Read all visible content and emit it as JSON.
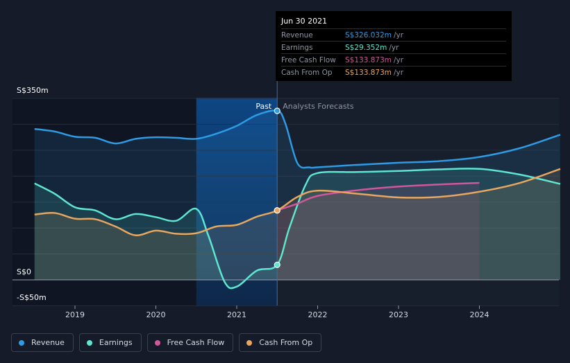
{
  "chart_data": {
    "type": "line",
    "currency_prefix": "S$",
    "ylabel_top": "S$350m",
    "ylabel_zero": "S$0",
    "ylabel_bottom": "-S$50m",
    "ylim": [
      -50,
      350
    ],
    "xlim": [
      2018.5,
      2025.0
    ],
    "x_ticks": [
      "2019",
      "2020",
      "2021",
      "2022",
      "2023",
      "2024"
    ],
    "x_tick_values": [
      2019,
      2020,
      2021,
      2022,
      2023,
      2024
    ],
    "past_label": "Past",
    "forecast_label": "Analysts Forecasts",
    "divider_x": 2021.5,
    "highlight_start_x": 2020.5,
    "series": [
      {
        "name": "Revenue",
        "color": "#2e9be5",
        "points": [
          [
            2018.5,
            291
          ],
          [
            2018.75,
            286
          ],
          [
            2019.0,
            276
          ],
          [
            2019.25,
            274
          ],
          [
            2019.5,
            263
          ],
          [
            2019.75,
            272
          ],
          [
            2020.0,
            275
          ],
          [
            2020.25,
            274
          ],
          [
            2020.5,
            272
          ],
          [
            2020.75,
            282
          ],
          [
            2021.0,
            297
          ],
          [
            2021.25,
            318
          ],
          [
            2021.5,
            326
          ],
          [
            2021.6,
            302
          ],
          [
            2021.75,
            225
          ],
          [
            2021.9,
            217
          ],
          [
            2022.0,
            217
          ],
          [
            2022.5,
            222
          ],
          [
            2023.0,
            226
          ],
          [
            2023.5,
            229
          ],
          [
            2024.0,
            237
          ],
          [
            2024.5,
            254
          ],
          [
            2025.0,
            280
          ]
        ]
      },
      {
        "name": "Earnings",
        "color": "#5ee6d1",
        "points": [
          [
            2018.5,
            186
          ],
          [
            2018.75,
            166
          ],
          [
            2019.0,
            140
          ],
          [
            2019.25,
            134
          ],
          [
            2019.5,
            117
          ],
          [
            2019.75,
            127
          ],
          [
            2020.0,
            121
          ],
          [
            2020.25,
            114
          ],
          [
            2020.5,
            137
          ],
          [
            2020.65,
            85
          ],
          [
            2020.85,
            -4
          ],
          [
            2021.0,
            -13
          ],
          [
            2021.25,
            18
          ],
          [
            2021.5,
            29
          ],
          [
            2021.65,
            100
          ],
          [
            2021.85,
            183
          ],
          [
            2022.0,
            206
          ],
          [
            2022.5,
            208
          ],
          [
            2023.0,
            210
          ],
          [
            2023.5,
            213
          ],
          [
            2024.0,
            214
          ],
          [
            2024.5,
            203
          ],
          [
            2025.0,
            185
          ]
        ]
      },
      {
        "name": "Free Cash Flow",
        "color": "#d1579a",
        "points": [
          [
            2021.5,
            134
          ],
          [
            2021.75,
            147
          ],
          [
            2022.0,
            162
          ],
          [
            2022.5,
            173
          ],
          [
            2023.0,
            180
          ],
          [
            2023.5,
            184
          ],
          [
            2024.0,
            187
          ]
        ]
      },
      {
        "name": "Cash From Op",
        "color": "#e8a760",
        "points": [
          [
            2018.5,
            126
          ],
          [
            2018.75,
            129
          ],
          [
            2019.0,
            118
          ],
          [
            2019.25,
            117
          ],
          [
            2019.5,
            103
          ],
          [
            2019.75,
            86
          ],
          [
            2020.0,
            95
          ],
          [
            2020.25,
            89
          ],
          [
            2020.5,
            90
          ],
          [
            2020.75,
            103
          ],
          [
            2021.0,
            106
          ],
          [
            2021.25,
            122
          ],
          [
            2021.5,
            134
          ],
          [
            2021.75,
            160
          ],
          [
            2022.0,
            172
          ],
          [
            2022.5,
            166
          ],
          [
            2023.0,
            159
          ],
          [
            2023.5,
            160
          ],
          [
            2024.0,
            170
          ],
          [
            2024.5,
            187
          ],
          [
            2025.0,
            214
          ]
        ]
      }
    ]
  },
  "tooltip": {
    "date": "Jun 30 2021",
    "unit": "/yr",
    "rows": [
      {
        "label": "Revenue",
        "value": "S$326.032m",
        "color": "#2e9be5"
      },
      {
        "label": "Earnings",
        "value": "S$29.352m",
        "color": "#5ee6d1"
      },
      {
        "label": "Free Cash Flow",
        "value": "S$133.873m",
        "color": "#d1579a"
      },
      {
        "label": "Cash From Op",
        "value": "S$133.873m",
        "color": "#e8a760"
      }
    ]
  },
  "legend": [
    {
      "label": "Revenue",
      "color": "#2e9be5"
    },
    {
      "label": "Earnings",
      "color": "#5ee6d1"
    },
    {
      "label": "Free Cash Flow",
      "color": "#d1579a"
    },
    {
      "label": "Cash From Op",
      "color": "#e8a760"
    }
  ]
}
